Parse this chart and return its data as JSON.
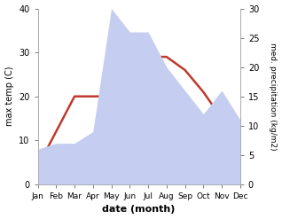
{
  "months": [
    "Jan",
    "Feb",
    "Mar",
    "Apr",
    "May",
    "Jun",
    "Jul",
    "Aug",
    "Sep",
    "Oct",
    "Nov",
    "Dec"
  ],
  "temperature": [
    4,
    12,
    20,
    20,
    20,
    24,
    29,
    29,
    26,
    21,
    15,
    10
  ],
  "precipitation": [
    6,
    7,
    7,
    9,
    30,
    26,
    26,
    20,
    16,
    12,
    16,
    11
  ],
  "temp_color": "#c0392b",
  "precip_fill_color": "#c5cef0",
  "temp_ylim": [
    0,
    40
  ],
  "precip_ylim": [
    0,
    30
  ],
  "xlabel": "date (month)",
  "ylabel_left": "max temp (C)",
  "ylabel_right": "med. precipitation (kg/m2)",
  "bg_color": "#ffffff",
  "temp_linewidth": 1.8,
  "fig_width": 3.18,
  "fig_height": 2.47,
  "dpi": 100,
  "temp_yticks": [
    0,
    10,
    20,
    30,
    40
  ],
  "precip_yticks": [
    0,
    5,
    10,
    15,
    20,
    25,
    30
  ]
}
